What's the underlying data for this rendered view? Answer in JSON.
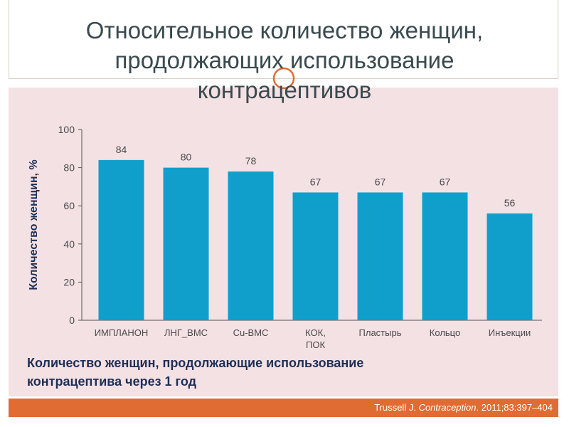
{
  "title_lines": [
    "Относительное количество женщин,",
    "продолжающих использование",
    "контрацептивов"
  ],
  "caption_lines": [
    "Количество женщин, продолжающие использование",
    "контрацептива через 1 год"
  ],
  "citation": {
    "author": "Trussell J.",
    "journal": "Contraception",
    "ref": ". 2011;83:397–404"
  },
  "colors": {
    "bar": "#109fcb",
    "panel": "#f4e1e4",
    "footer": "#e06c33",
    "title": "#3a4a4f",
    "caption": "#1f2f55",
    "ring": "#e06c33"
  },
  "chart_data": {
    "type": "bar",
    "ylabel": "Количество женщин, %",
    "ylim": [
      0,
      100
    ],
    "yticks": [
      0,
      20,
      40,
      60,
      80,
      100
    ],
    "grid": false,
    "categories": [
      [
        "ИМПЛАНОН"
      ],
      [
        "ЛНГ_ВМС"
      ],
      [
        "Cu-ВМС"
      ],
      [
        "КОК,",
        "ПОК"
      ],
      [
        "Пластырь"
      ],
      [
        "Кольцо"
      ],
      [
        "Инъекции"
      ]
    ],
    "values": [
      84,
      80,
      78,
      67,
      67,
      67,
      56
    ]
  }
}
